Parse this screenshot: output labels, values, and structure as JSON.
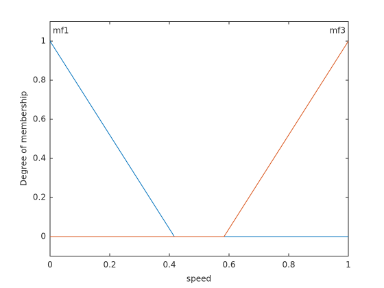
{
  "chart_data": {
    "type": "line",
    "xlabel": "speed",
    "ylabel": "Degree of membership",
    "series": [
      {
        "name": "mf1",
        "color": "#0072bd",
        "x": [
          0,
          0.4167,
          1
        ],
        "values": [
          1,
          0,
          0
        ]
      },
      {
        "name": "mf3",
        "color": "#d95319",
        "x": [
          0,
          0.5833,
          1
        ],
        "values": [
          0,
          0,
          1
        ]
      }
    ],
    "xlim": [
      0,
      1
    ],
    "xticks": [
      0,
      0.2,
      0.4,
      0.6,
      0.8,
      1
    ],
    "ylim": [
      -0.1,
      1.1
    ],
    "yticks": [
      0,
      0.2,
      0.4,
      0.6,
      0.8,
      1
    ],
    "grid": false
  }
}
